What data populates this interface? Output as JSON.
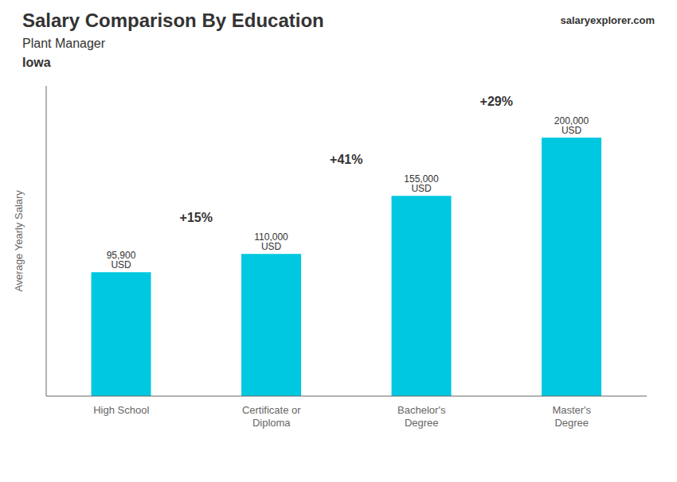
{
  "chart_data": {
    "type": "bar",
    "title": "Salary Comparison By Education",
    "subtitle": [
      "Plant Manager",
      "Iowa"
    ],
    "y_label": "Average Yearly Salary",
    "categories": [
      "High School",
      "Certificate or\nDiploma",
      "Bachelor's\nDegree",
      "Master's\nDegree"
    ],
    "values": [
      95900,
      110000,
      155000,
      200000
    ],
    "value_labels": [
      "95,900 USD",
      "110,000 USD",
      "155,000 USD",
      "200,000 USD"
    ],
    "data_labels": true,
    "annotations": [
      "+15%",
      "+41%",
      "+29%",
      "salaryexplorer.com"
    ],
    "color": "#00c8e0",
    "ylim": [
      0,
      240000
    ],
    "tick_labels": "x",
    "grid": false
  }
}
